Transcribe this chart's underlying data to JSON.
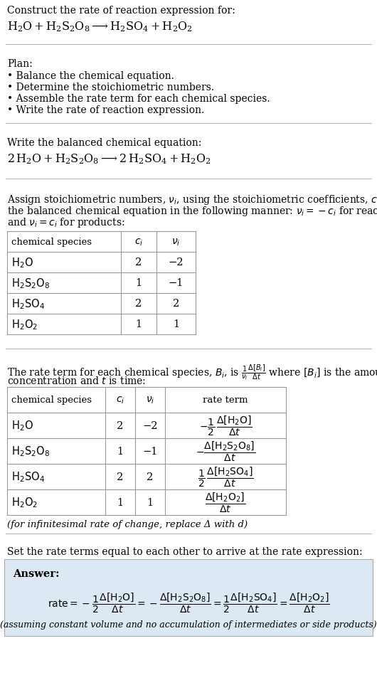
{
  "bg_color": "#ffffff",
  "answer_bg": "#dce9f5",
  "title_text": "Construct the rate of reaction expression for:",
  "plan_header": "Plan:",
  "plan_items": [
    "• Balance the chemical equation.",
    "• Determine the stoichiometric numbers.",
    "• Assemble the rate term for each chemical species.",
    "• Write the rate of reaction expression."
  ],
  "balanced_header": "Write the balanced chemical equation:",
  "table1_rows": [
    [
      "H_2O",
      "2",
      "−2"
    ],
    [
      "H_2S_2O_8",
      "1",
      "−1"
    ],
    [
      "H_2SO_4",
      "2",
      "2"
    ],
    [
      "H_2O_2",
      "1",
      "1"
    ]
  ],
  "table2_rows": [
    [
      "H_2O",
      "2",
      "−2"
    ],
    [
      "H_2S_2O_8",
      "1",
      "−1"
    ],
    [
      "H_2SO_4",
      "2",
      "2"
    ],
    [
      "H_2O_2",
      "1",
      "1"
    ]
  ],
  "infinitesimal_note": "(for infinitesimal rate of change, replace Δ with d)",
  "set_equal_text": "Set the rate terms equal to each other to arrive at the rate expression:",
  "answer_label": "Answer:",
  "assuming_note": "(assuming constant volume and no accumulation of intermediates or side products)"
}
